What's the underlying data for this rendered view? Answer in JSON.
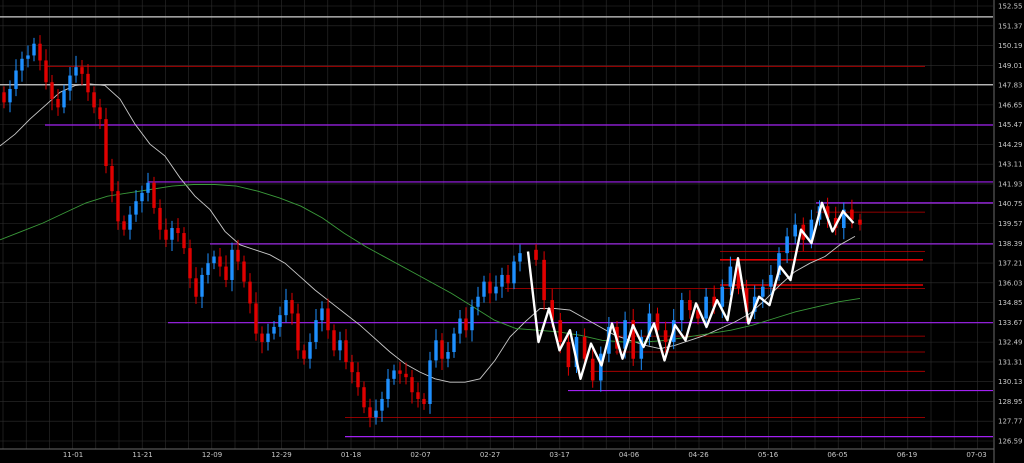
{
  "chart_data": {
    "type": "candlestick",
    "background": "#000000",
    "grid": true,
    "ylim": [
      126.0,
      153.0
    ],
    "x_tick_labels": [
      "11-01",
      "11-21",
      "12-09",
      "12-29",
      "01-18",
      "02-07",
      "02-27",
      "03-17",
      "04-06",
      "04-26",
      "05-16",
      "06-05",
      "06-19",
      "07-03"
    ],
    "y_tick_labels": [
      "126.59",
      "127.77",
      "128.95",
      "130.13",
      "131.31",
      "132.49",
      "133.67",
      "134.85",
      "136.03",
      "137.21",
      "138.39",
      "139.57",
      "140.75",
      "141.93",
      "143.11",
      "144.29",
      "145.47",
      "146.65",
      "147.83",
      "149.01",
      "150.19",
      "151.37",
      "152.55"
    ],
    "colors": {
      "up": "#1e90ff",
      "down": "#e00000",
      "ma_fast": "#c8c8c8",
      "ma_slow": "#3a9a3a",
      "support_resistance": "#a020f0",
      "price_level": "#c00000",
      "zigzag": "#ffffff",
      "grid": "#2e2e2e"
    },
    "candles_phase1": [
      146.8,
      147.6,
      148.7,
      149.4,
      149.6,
      150.3,
      149.3,
      148.0,
      147.0,
      146.5,
      147.5,
      148.4,
      148.9,
      148.5,
      147.4,
      146.5,
      145.8,
      143.0,
      141.5,
      139.7,
      139.2,
      140.1,
      140.9,
      141.4,
      142.0,
      140.5,
      139.2,
      138.6,
      139.3,
      139.0,
      138.1,
      136.3,
      135.2,
      136.5,
      137.2,
      137.6,
      137.0,
      136.2,
      138.0,
      137.3,
      136.1,
      134.8,
      133.0,
      132.5,
      133.0,
      133.4,
      134.1,
      135.0,
      134.2,
      132.0,
      131.5,
      132.5,
      133.8,
      134.5,
      133.2,
      132.0,
      132.6,
      131.3,
      130.7,
      129.8,
      128.6,
      128.0,
      128.4,
      129.1,
      130.3,
      130.8,
      130.6,
      130.4,
      129.5,
      129.1,
      128.8,
      131.4,
      132.6,
      131.5,
      131.9,
      133.0,
      133.9,
      133.2,
      134.6,
      135.2,
      136.1,
      135.4,
      135.8,
      136.5,
      136.0,
      137.3,
      137.8
    ],
    "candles_phase2": [
      137.4,
      135.0,
      133.8,
      132.5,
      131.0,
      132.8,
      131.5,
      130.2,
      131.8,
      133.4,
      132.1,
      133.8,
      131.5,
      132.8,
      134.2,
      133.2,
      132.5,
      133.8,
      135.0,
      134.4,
      133.9,
      135.2,
      134.6,
      135.8,
      137.0,
      135.7,
      134.3,
      135.2,
      135.8,
      136.5,
      137.8,
      138.8,
      139.5,
      138.6,
      139.8,
      140.6,
      139.9,
      139.3,
      140.4,
      139.8,
      139.5
    ],
    "zigzag": [
      137.9,
      132.5,
      134.5,
      132.0,
      133.2,
      130.3,
      132.4,
      131.1,
      133.6,
      131.5,
      133.5,
      132.2,
      133.6,
      131.4,
      133.5,
      132.6,
      134.8,
      133.4,
      135.0,
      133.8,
      137.5,
      133.6,
      135.2,
      134.7,
      137.0,
      136.2,
      139.2,
      138.4,
      140.8,
      139.1,
      140.3,
      139.6
    ],
    "ma_fast": [
      144.2,
      144.9,
      145.8,
      146.6,
      147.4,
      147.8,
      147.9,
      147.8,
      147.0,
      145.5,
      144.3,
      143.6,
      142.3,
      141.2,
      140.4,
      139.1,
      138.3,
      138.0,
      137.7,
      137.2,
      136.4,
      135.6,
      134.9,
      134.2,
      133.5,
      132.7,
      131.9,
      131.2,
      130.7,
      130.3,
      130.1,
      130.1,
      130.3,
      131.4,
      132.8,
      133.7,
      134.5,
      134.5,
      134.4,
      133.9,
      133.4,
      132.9,
      132.6,
      132.3,
      132.1,
      132.3,
      132.6,
      132.9,
      133.3,
      133.7,
      134.2,
      135.0,
      135.9,
      136.7,
      137.2,
      137.6,
      138.3,
      138.8
    ],
    "ma_slow": [
      138.6,
      139.1,
      139.6,
      140.2,
      140.8,
      141.2,
      141.4,
      141.6,
      141.8,
      141.9,
      141.9,
      141.8,
      141.5,
      141.1,
      140.6,
      139.9,
      139.0,
      138.2,
      137.5,
      136.8,
      136.1,
      135.4,
      134.6,
      133.8,
      133.3,
      133.2,
      133.1,
      132.9,
      132.6,
      132.5,
      132.5,
      132.6,
      132.8,
      133.0,
      133.2,
      133.5,
      133.9,
      134.3,
      134.6,
      134.9,
      135.1
    ]
  }
}
